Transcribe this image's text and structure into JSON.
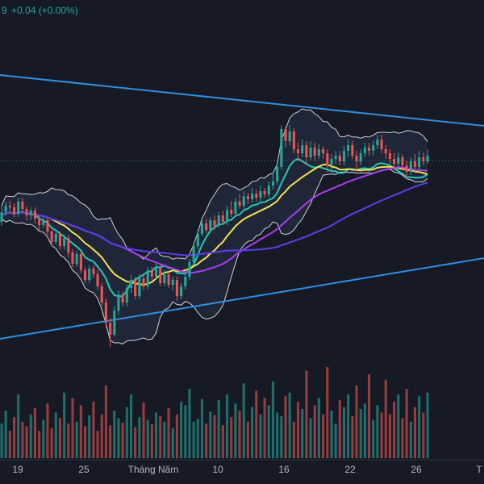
{
  "header": {
    "partial_value": "9",
    "change_text": "+0.04 (+0.00%)"
  },
  "chart_data": {
    "type": "candlestick",
    "x_axis_labels": [
      "19",
      "25",
      "Tháng Năm",
      "10",
      "16",
      "22",
      "26",
      "T"
    ],
    "candles": [
      [
        0,
        0.1,
        0.22,
        0.05,
        0.3
      ],
      [
        1,
        0.22,
        0.3,
        0.18,
        0.35
      ],
      [
        2,
        0.3,
        0.28,
        0.2,
        0.36
      ],
      [
        3,
        0.28,
        0.2,
        0.15,
        0.33
      ],
      [
        4,
        0.2,
        0.35,
        0.16,
        0.4
      ],
      [
        5,
        0.35,
        0.26,
        0.22,
        0.4
      ],
      [
        6,
        0.26,
        0.18,
        0.12,
        0.3
      ],
      [
        7,
        0.18,
        0.24,
        0.12,
        0.28
      ],
      [
        8,
        0.24,
        0.14,
        0.08,
        0.28
      ],
      [
        9,
        0.14,
        0.06,
        0.0,
        0.18
      ],
      [
        10,
        0.06,
        0.12,
        0.02,
        0.16
      ],
      [
        11,
        0.12,
        -0.02,
        -0.06,
        0.15
      ],
      [
        12,
        -0.02,
        -0.15,
        -0.2,
        0.0
      ],
      [
        13,
        -0.15,
        -0.05,
        -0.18,
        0.0
      ],
      [
        14,
        -0.05,
        -0.2,
        -0.24,
        -0.02
      ],
      [
        15,
        -0.2,
        -0.1,
        -0.24,
        -0.06
      ],
      [
        16,
        -0.1,
        -0.28,
        -0.34,
        -0.06
      ],
      [
        17,
        -0.28,
        -0.42,
        -0.46,
        -0.24
      ],
      [
        18,
        -0.42,
        -0.3,
        -0.46,
        -0.26
      ],
      [
        19,
        -0.3,
        -0.5,
        -0.54,
        -0.26
      ],
      [
        20,
        -0.5,
        -0.62,
        -0.66,
        -0.46
      ],
      [
        21,
        -0.62,
        -0.48,
        -0.66,
        -0.44
      ],
      [
        22,
        -0.48,
        -0.55,
        -0.6,
        -0.44
      ],
      [
        23,
        -0.55,
        -0.7,
        -0.74,
        -0.5
      ],
      [
        24,
        -0.7,
        -0.9,
        -0.94,
        -0.66
      ],
      [
        25,
        -0.9,
        -1.15,
        -1.22,
        -0.85
      ],
      [
        26,
        -1.15,
        -1.3,
        -1.45,
        -1.1
      ],
      [
        27,
        -1.3,
        -1.0,
        -1.32,
        -0.95
      ],
      [
        28,
        -1.0,
        -0.8,
        -1.05,
        -0.75
      ],
      [
        29,
        -0.8,
        -0.9,
        -0.95,
        -0.76
      ],
      [
        30,
        -0.9,
        -0.72,
        -0.95,
        -0.68
      ],
      [
        31,
        -0.72,
        -0.62,
        -0.78,
        -0.56
      ],
      [
        32,
        -0.62,
        -0.82,
        -0.86,
        -0.58
      ],
      [
        33,
        -0.82,
        -0.6,
        -0.86,
        -0.55
      ],
      [
        34,
        -0.6,
        -0.7,
        -0.74,
        -0.54
      ],
      [
        35,
        -0.7,
        -0.5,
        -0.74,
        -0.46
      ],
      [
        36,
        -0.5,
        -0.58,
        -0.64,
        -0.46
      ],
      [
        37,
        -0.58,
        -0.48,
        -0.62,
        -0.42
      ],
      [
        38,
        -0.48,
        -0.66,
        -0.7,
        -0.44
      ],
      [
        39,
        -0.66,
        -0.55,
        -0.7,
        -0.5
      ],
      [
        40,
        -0.55,
        -0.68,
        -0.72,
        -0.52
      ],
      [
        41,
        -0.68,
        -0.62,
        -0.75,
        -0.58
      ],
      [
        42,
        -0.62,
        -0.82,
        -0.88,
        -0.58
      ],
      [
        43,
        -0.82,
        -0.7,
        -0.86,
        -0.66
      ],
      [
        44,
        -0.7,
        -0.58,
        -0.74,
        -0.54
      ],
      [
        45,
        -0.58,
        -0.4,
        -0.62,
        -0.36
      ],
      [
        46,
        -0.4,
        -0.2,
        -0.44,
        -0.16
      ],
      [
        47,
        -0.2,
        -0.05,
        -0.24,
        0.0
      ],
      [
        48,
        -0.05,
        0.08,
        -0.08,
        0.12
      ],
      [
        49,
        0.08,
        0.0,
        -0.04,
        0.14
      ],
      [
        50,
        0.0,
        0.12,
        -0.04,
        0.16
      ],
      [
        51,
        0.12,
        0.05,
        0.0,
        0.18
      ],
      [
        52,
        0.05,
        0.18,
        0.02,
        0.22
      ],
      [
        53,
        0.18,
        0.1,
        0.06,
        0.24
      ],
      [
        54,
        0.1,
        0.25,
        0.06,
        0.3
      ],
      [
        55,
        0.25,
        0.2,
        0.16,
        0.36
      ],
      [
        56,
        0.2,
        0.35,
        0.16,
        0.4
      ],
      [
        57,
        0.35,
        0.3,
        0.26,
        0.45
      ],
      [
        58,
        0.3,
        0.42,
        0.26,
        0.48
      ],
      [
        59,
        0.42,
        0.38,
        0.32,
        0.46
      ],
      [
        60,
        0.38,
        0.45,
        0.34,
        0.52
      ],
      [
        61,
        0.45,
        0.4,
        0.35,
        0.5
      ],
      [
        62,
        0.4,
        0.48,
        0.36,
        0.55
      ],
      [
        63,
        0.48,
        0.44,
        0.4,
        0.52
      ],
      [
        64,
        0.44,
        0.55,
        0.4,
        0.6
      ],
      [
        65,
        0.55,
        0.6,
        0.5,
        0.72
      ],
      [
        66,
        0.6,
        0.78,
        0.56,
        0.82
      ],
      [
        67,
        0.78,
        1.25,
        0.74,
        1.3
      ],
      [
        68,
        1.25,
        1.1,
        1.02,
        1.28
      ],
      [
        69,
        1.1,
        1.22,
        1.05,
        1.3
      ],
      [
        70,
        1.22,
        1.0,
        0.95,
        1.26
      ],
      [
        71,
        1.0,
        0.95,
        0.85,
        1.08
      ],
      [
        72,
        0.95,
        1.05,
        0.9,
        1.12
      ],
      [
        73,
        1.05,
        0.9,
        0.82,
        1.1
      ],
      [
        74,
        0.9,
        1.02,
        0.86,
        1.1
      ],
      [
        75,
        1.02,
        0.92,
        0.86,
        1.08
      ],
      [
        76,
        0.92,
        1.0,
        0.88,
        1.06
      ],
      [
        77,
        1.0,
        0.95,
        0.88,
        1.04
      ],
      [
        78,
        0.95,
        0.8,
        0.72,
        1.0
      ],
      [
        79,
        0.8,
        0.88,
        0.74,
        0.94
      ],
      [
        80,
        0.88,
        0.92,
        0.82,
        0.98
      ],
      [
        81,
        0.92,
        0.85,
        0.8,
        0.98
      ],
      [
        82,
        0.85,
        0.98,
        0.8,
        1.04
      ],
      [
        83,
        0.98,
        1.05,
        0.9,
        1.12
      ],
      [
        84,
        1.05,
        0.92,
        0.88,
        1.1
      ],
      [
        85,
        0.92,
        0.85,
        0.72,
        0.98
      ],
      [
        86,
        0.85,
        0.95,
        0.8,
        1.0
      ],
      [
        87,
        0.95,
        1.02,
        0.9,
        1.08
      ],
      [
        88,
        1.02,
        0.98,
        0.92,
        1.08
      ],
      [
        89,
        0.98,
        1.05,
        0.92,
        1.1
      ],
      [
        90,
        1.05,
        1.12,
        1.0,
        1.18
      ],
      [
        91,
        1.12,
        1.0,
        0.95,
        1.18
      ],
      [
        92,
        1.0,
        0.95,
        0.88,
        1.05
      ],
      [
        93,
        0.95,
        0.88,
        0.82,
        1.0
      ],
      [
        94,
        0.88,
        0.82,
        0.74,
        0.95
      ],
      [
        95,
        0.82,
        0.9,
        0.76,
        0.96
      ],
      [
        96,
        0.9,
        0.8,
        0.74,
        0.94
      ],
      [
        97,
        0.8,
        0.72,
        0.66,
        0.86
      ],
      [
        98,
        0.72,
        0.85,
        0.68,
        0.9
      ],
      [
        99,
        0.85,
        0.78,
        0.72,
        0.94
      ],
      [
        100,
        0.78,
        0.9,
        0.74,
        0.98
      ],
      [
        101,
        0.9,
        0.85,
        0.8,
        0.96
      ],
      [
        102,
        0.85,
        0.92,
        0.82,
        1.0
      ]
    ],
    "volume": [
      38,
      52,
      30,
      45,
      70,
      40,
      35,
      48,
      55,
      30,
      42,
      60,
      33,
      50,
      44,
      72,
      38,
      66,
      40,
      58,
      35,
      47,
      62,
      30,
      48,
      80,
      36,
      52,
      44,
      39,
      56,
      70,
      34,
      45,
      61,
      42,
      37,
      50,
      46,
      40,
      55,
      33,
      48,
      62,
      58,
      76,
      40,
      43,
      65,
      38,
      51,
      47,
      64,
      36,
      70,
      45,
      60,
      52,
      82,
      40,
      56,
      74,
      48,
      66,
      58,
      84,
      50,
      46,
      68,
      72,
      40,
      62,
      54,
      96,
      44,
      58,
      66,
      48,
      100,
      52,
      38,
      64,
      56,
      70,
      46,
      80,
      54,
      60,
      92,
      42,
      58,
      50,
      86,
      48,
      62,
      70,
      44,
      76,
      40,
      56,
      68,
      50,
      72
    ],
    "indicators": {
      "bollinger_bands": true,
      "moving_averages": [
        "teal",
        "yellow",
        "purple",
        "blue-violet"
      ],
      "trendlines": 2
    },
    "colors": {
      "up": "#26a69a",
      "down": "#ef5350",
      "background": "#161a25",
      "trendline": "#2f8fe0",
      "band": "#d0d0d0",
      "ma_fast": "#26c6b4",
      "ma_mid": "#f4e04d",
      "ma_slow": "#a63ef0",
      "ma_long": "#5b3ee8"
    }
  }
}
